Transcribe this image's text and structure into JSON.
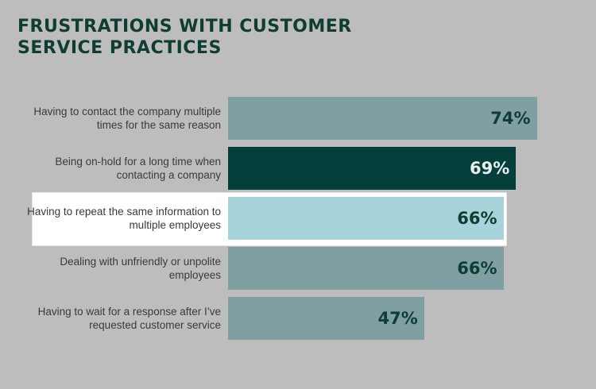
{
  "chart_data": {
    "type": "bar",
    "orientation": "horizontal",
    "title": "FRUSTRATIONS WITH CUSTOMER\nSERVICE PRACTICES",
    "categories": [
      "Having to contact the company multiple times for the same reason",
      "Being on-hold for a long time when contacting a company",
      "Having to repeat the same information to multiple employees",
      "Dealing with unfriendly or unpolite employees",
      "Having to wait for a response after I’ve requested customer service"
    ],
    "values": [
      74,
      69,
      66,
      66,
      47
    ],
    "value_labels": [
      "74%",
      "69%",
      "66%",
      "66%",
      "47%"
    ],
    "unit": "%",
    "xlim": [
      0,
      100
    ],
    "grid": false,
    "legend": "none",
    "highlighted_index": 2,
    "colors": {
      "background": "#bdbdbd",
      "title": "#0f3d33",
      "bar_default": "#7f9fa3",
      "bar_emphasis": "#053f3b",
      "bar_highlight": "#a7d4da",
      "label_dark": "#0f3d33",
      "label_light": "#e9efee"
    }
  }
}
